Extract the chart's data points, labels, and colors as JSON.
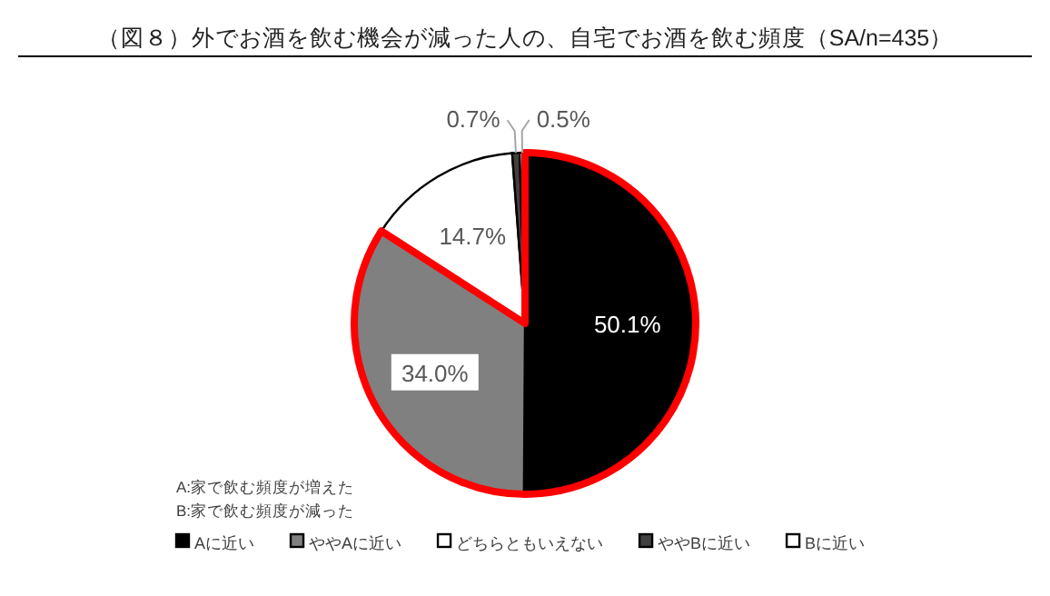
{
  "chart_data": {
    "type": "pie",
    "title": "（図８）外でお酒を飲む機会が減った人の、自宅でお酒を飲む頻度（SA/n=435）",
    "categories": [
      "Aに近い",
      "ややAに近い",
      "どちらともいえない",
      "ややBに近い",
      "Bに近い"
    ],
    "values": [
      50.1,
      34.0,
      14.7,
      0.7,
      0.5
    ],
    "colors": [
      "#000000",
      "#808080",
      "#ffffff",
      "#404040",
      "#ffffff"
    ],
    "value_labels": [
      "50.1%",
      "34.0%",
      "14.7%",
      "0.7%",
      "0.5%"
    ],
    "annotations": [
      "A:家で飲む頻度が増えた",
      "B:家で飲む頻度が減った"
    ],
    "legend": "bottom"
  }
}
